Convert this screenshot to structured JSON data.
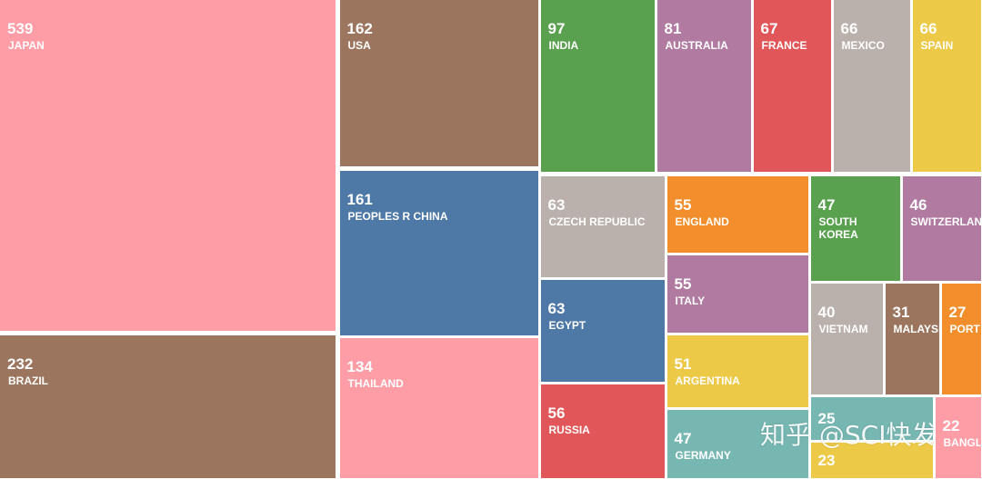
{
  "chart_data": {
    "type": "treemap",
    "items": [
      {
        "label": "JAPAN",
        "value": 539,
        "color": "#FF9DA7"
      },
      {
        "label": "BRAZIL",
        "value": 232,
        "color": "#9C755F"
      },
      {
        "label": "USA",
        "value": 162,
        "color": "#9C755F"
      },
      {
        "label": "PEOPLES R CHINA",
        "value": 161,
        "color": "#4E79A7"
      },
      {
        "label": "THAILAND",
        "value": 134,
        "color": "#FF9DA7"
      },
      {
        "label": "INDIA",
        "value": 97,
        "color": "#59A14F"
      },
      {
        "label": "AUSTRALIA",
        "value": 81,
        "color": "#B07AA1"
      },
      {
        "label": "FRANCE",
        "value": 67,
        "color": "#E15759"
      },
      {
        "label": "MEXICO",
        "value": 66,
        "color": "#BAB0AC"
      },
      {
        "label": "SPAIN",
        "value": 66,
        "color": "#EDC948"
      },
      {
        "label": "CZECH REPUBLIC",
        "value": 63,
        "color": "#BAB0AC"
      },
      {
        "label": "EGYPT",
        "value": 63,
        "color": "#4E79A7"
      },
      {
        "label": "RUSSIA",
        "value": 56,
        "color": "#E15759"
      },
      {
        "label": "ENGLAND",
        "value": 55,
        "color": "#F28E2B"
      },
      {
        "label": "ITALY",
        "value": 55,
        "color": "#B07AA1"
      },
      {
        "label": "ARGENTINA",
        "value": 51,
        "color": "#EDC948"
      },
      {
        "label": "GERMANY",
        "value": 47,
        "color": "#76B7B2"
      },
      {
        "label": "SOUTH KOREA",
        "value": 47,
        "color": "#59A14F"
      },
      {
        "label": "SWITZERLAN",
        "value": 46,
        "color": "#B07AA1"
      },
      {
        "label": "VIETNAM",
        "value": 40,
        "color": "#BAB0AC"
      },
      {
        "label": "MALAYSIA",
        "value": 31,
        "color": "#9C755F"
      },
      {
        "label": "PORT",
        "value": 27,
        "color": "#F28E2B"
      },
      {
        "label": "",
        "value": 25,
        "color": "#76B7B2"
      },
      {
        "label": "",
        "value": 23,
        "color": "#EDC948"
      },
      {
        "label": "BANGL",
        "value": 22,
        "color": "#FF9DA7"
      }
    ]
  },
  "watermark": "知乎 @SCI快发"
}
